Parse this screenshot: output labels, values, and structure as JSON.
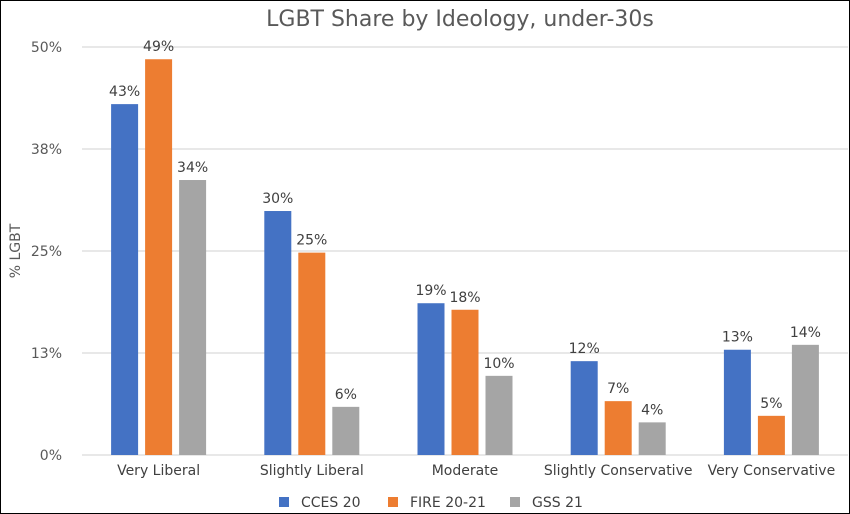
{
  "chart_data": {
    "type": "bar",
    "title": "LGBT Share by Ideology, under-30s",
    "xlabel": "",
    "ylabel": "% LGBT",
    "ylim": [
      0,
      50
    ],
    "yticks": [
      0,
      12.5,
      25,
      37.5,
      50
    ],
    "ytick_labels": [
      "0%",
      "13%",
      "25%",
      "38%",
      "50%"
    ],
    "grid": true,
    "legend_position": "bottom",
    "categories": [
      "Very Liberal",
      "Slightly Liberal",
      "Moderate",
      "Slightly Conservative",
      "Very Conservative"
    ],
    "series": [
      {
        "name": "CCES 20",
        "color": "#4472C4",
        "values": [
          43.0,
          29.9,
          18.6,
          11.5,
          12.9
        ],
        "labels": [
          "43%",
          "30%",
          "19%",
          "12%",
          "13%"
        ]
      },
      {
        "name": "FIRE 20-21",
        "color": "#ED7D31",
        "values": [
          48.5,
          24.8,
          17.8,
          6.6,
          4.8
        ],
        "labels": [
          "49%",
          "25%",
          "18%",
          "7%",
          "5%"
        ]
      },
      {
        "name": "GSS 21",
        "color": "#A5A5A5",
        "values": [
          33.7,
          5.9,
          9.7,
          4.0,
          13.5
        ],
        "labels": [
          "34%",
          "6%",
          "10%",
          "4%",
          "14%"
        ]
      }
    ]
  }
}
